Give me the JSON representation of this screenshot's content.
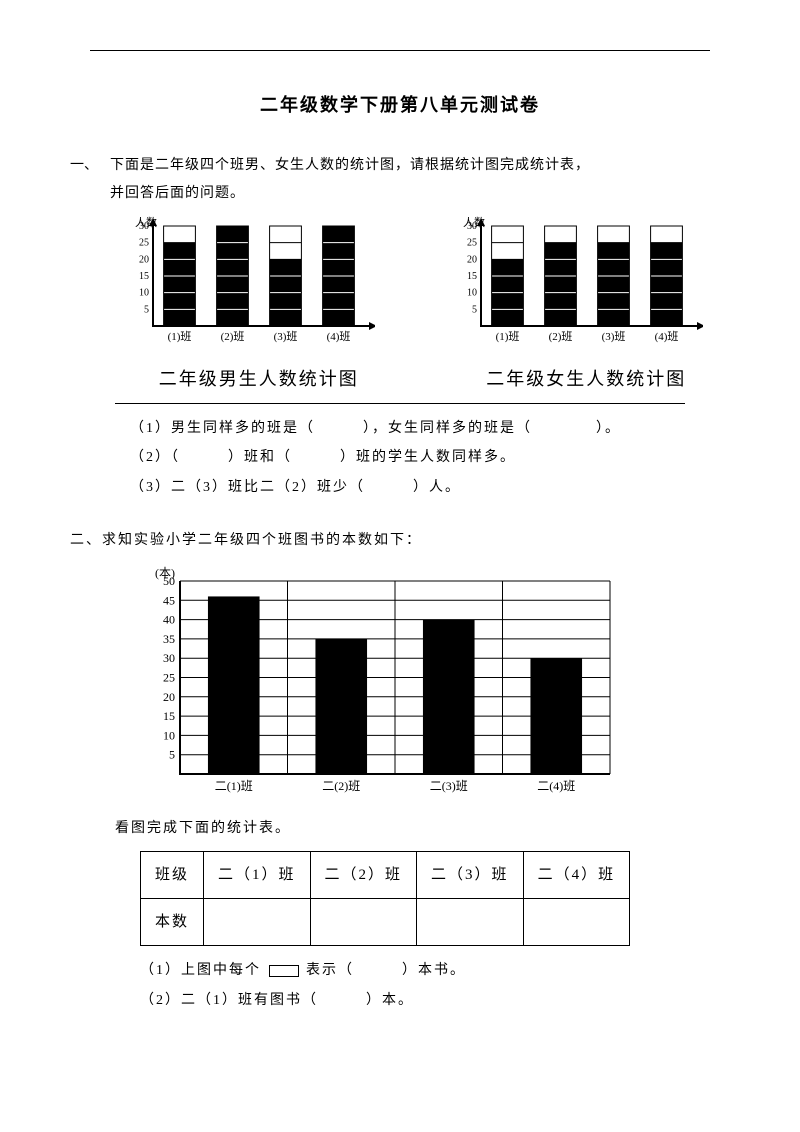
{
  "page": {
    "title": "二年级数学下册第八单元测试卷",
    "background_color": "#ffffff",
    "text_color": "#000000"
  },
  "q1": {
    "number": "一、",
    "intro_line1": "下面是二年级四个班男、女生人数的统计图，请根据统计图完成统计表，",
    "intro_line2": "并回答后面的问题。",
    "chart_boys": {
      "type": "bar",
      "y_label": "人数",
      "y_ticks": [
        5,
        10,
        15,
        20,
        25,
        30
      ],
      "y_max": 30,
      "categories": [
        "(1)班",
        "(2)班",
        "(3)班",
        "(4)班"
      ],
      "values": [
        25,
        30,
        20,
        30
      ],
      "bar_color": "#000000",
      "grid_color": "#000000",
      "title": "二年级男生人数统计图"
    },
    "chart_girls": {
      "type": "bar",
      "y_label": "人数",
      "y_ticks": [
        5,
        10,
        15,
        20,
        25,
        30
      ],
      "y_max": 30,
      "categories": [
        "(1)班",
        "(2)班",
        "(3)班",
        "(4)班"
      ],
      "values": [
        20,
        25,
        25,
        25
      ],
      "bar_color": "#000000",
      "grid_color": "#000000",
      "title": "二年级女生人数统计图"
    },
    "sub1": "（1）男生同样多的班是（　　　），女生同样多的班是（　　　　）。",
    "sub2": "（2）（　　　）班和（　　　）班的学生人数同样多。",
    "sub3": "（3）二（3）班比二（2）班少（　　　）人。"
  },
  "q2": {
    "intro": "二、求知实验小学二年级四个班图书的本数如下：",
    "chart": {
      "type": "bar",
      "y_label": "(本)",
      "y_ticks": [
        5,
        10,
        15,
        20,
        25,
        30,
        35,
        40,
        45,
        50
      ],
      "y_max": 50,
      "categories": [
        "二(1)班",
        "二(2)班",
        "二(3)班",
        "二(4)班"
      ],
      "values": [
        46,
        35,
        40,
        30
      ],
      "bar_color": "#000000",
      "grid_color": "#000000"
    },
    "table_intro": "看图完成下面的统计表。",
    "table": {
      "row1": [
        "班级",
        "二（1）班",
        "二（2）班",
        "二（3）班",
        "二（4）班"
      ],
      "row2_label": "本数"
    },
    "sub1_a": "（1）上图中每个",
    "sub1_b": "表示（　　　）本书。",
    "sub2": "（2）二（1）班有图书（　　　）本。"
  }
}
